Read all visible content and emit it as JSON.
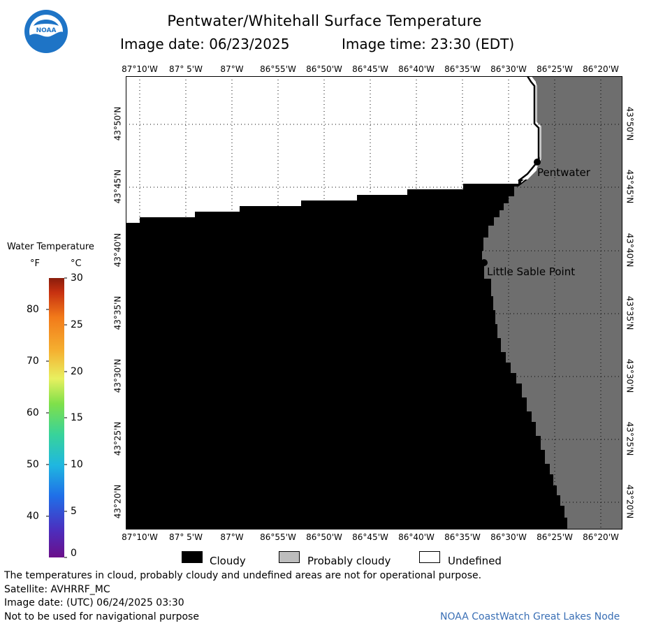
{
  "header": {
    "logo_text": "NOAA",
    "title": "Pentwater/Whitehall Surface Temperature",
    "subtitle_date": "Image date: 06/23/2025",
    "subtitle_time": "Image time: 23:30 (EDT)"
  },
  "map": {
    "lon_labels": [
      "87°10'W",
      "87° 5'W",
      "87°W",
      "86°55'W",
      "86°50'W",
      "86°45'W",
      "86°40'W",
      "86°35'W",
      "86°30'W",
      "86°25'W",
      "86°20'W"
    ],
    "lat_labels": [
      "43°50'N",
      "43°45'N",
      "43°40'N",
      "43°35'N",
      "43°30'N",
      "43°25'N",
      "43°20'N"
    ],
    "places": [
      {
        "name": "Pentwater"
      },
      {
        "name": "Little Sable Point"
      }
    ],
    "colors": {
      "cloudy": "#000000",
      "land": "#6e6e6e",
      "undefined": "#ffffff",
      "grid": "#000000"
    }
  },
  "colorbar": {
    "title": "Water Temperature",
    "unit_f": "°F",
    "unit_c": "°C",
    "f_ticks": [
      "80",
      "70",
      "60",
      "50",
      "40"
    ],
    "c_ticks": [
      "30",
      "25",
      "20",
      "15",
      "10",
      "5",
      "0"
    ]
  },
  "legend": {
    "items": [
      {
        "label": "Cloudy",
        "color": "#000000"
      },
      {
        "label": "Probably cloudy",
        "color": "#bdbdbd"
      },
      {
        "label": "Undefined",
        "color": "#ffffff"
      }
    ]
  },
  "footer": {
    "line1": "The temperatures in cloud, probably cloudy and undefined areas are not for operational purpose.",
    "line2": "Satellite: AVHRRF_MC",
    "line3": "Image date: (UTC) 06/24/2025  03:30",
    "line4": "Not to be used for navigational purpose",
    "credit": "NOAA CoastWatch Great Lakes Node",
    "credit_color": "#3a6fb5"
  }
}
